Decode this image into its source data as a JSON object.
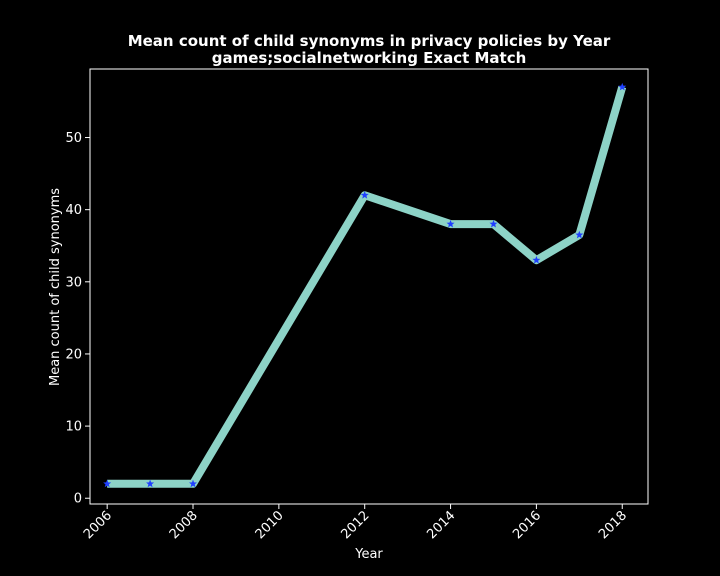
{
  "chart_data": {
    "type": "line",
    "title": "Mean count of child synonyms in privacy policies by Year",
    "subtitle": "games;socialnetworking Exact Match",
    "xlabel": "Year",
    "ylabel": "Mean count of child synonyms",
    "x": [
      2006,
      2007,
      2008,
      2012,
      2014,
      2015,
      2016,
      2017,
      2018
    ],
    "values": [
      2,
      2,
      2,
      42,
      38,
      38,
      33,
      36.5,
      57
    ],
    "xlim": [
      2005.6,
      2018.6
    ],
    "ylim": [
      -0.8,
      59.5
    ],
    "xticks": [
      2006,
      2008,
      2010,
      2012,
      2014,
      2016,
      2018
    ],
    "yticks": [
      0,
      10,
      20,
      30,
      40,
      50
    ],
    "grid": false,
    "colors": {
      "background": "#000000",
      "line": "#8dd3c7",
      "marker": "#1f3fff",
      "axes": "#ffffff",
      "text": "#ffffff"
    }
  }
}
